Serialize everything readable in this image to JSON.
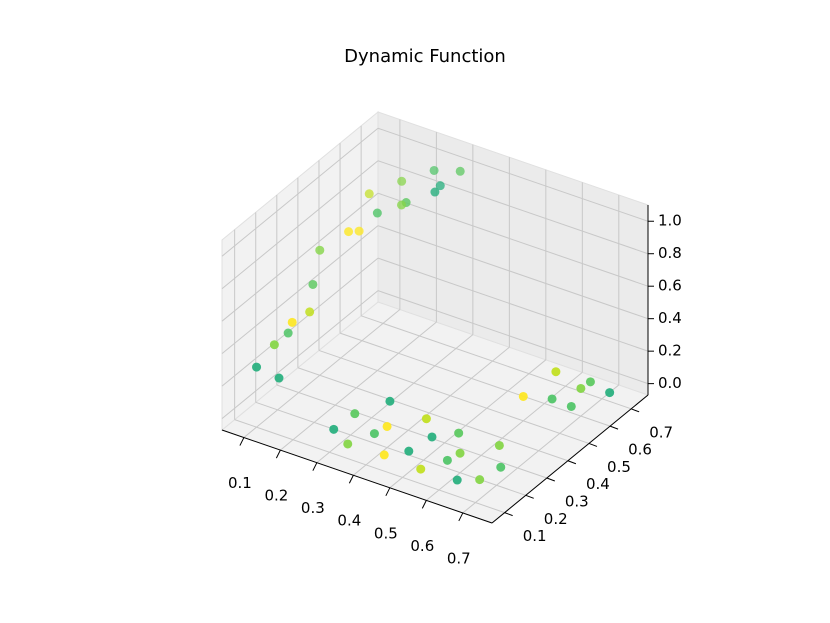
{
  "chart_data": {
    "type": "scatter3d",
    "title": "Dynamic Function",
    "xlim": [
      0.04,
      0.78
    ],
    "ylim": [
      0.04,
      0.78
    ],
    "zlim": [
      -0.07,
      1.1
    ],
    "xticks": [
      0.1,
      0.2,
      0.3,
      0.4,
      0.5,
      0.6,
      0.7
    ],
    "yticks": [
      0.1,
      0.2,
      0.3,
      0.4,
      0.5,
      0.6,
      0.7
    ],
    "zticks": [
      {
        "value": 0,
        "label": "0.0"
      },
      0.2,
      0.4,
      0.6,
      0.8,
      {
        "value": 1,
        "label": "1.0"
      }
    ],
    "grid": true,
    "x": [
      0.3,
      0.35,
      0.4,
      0.45,
      0.5,
      0.55,
      0.6,
      0.65,
      0.7,
      0.3,
      0.4,
      0.5,
      0.6,
      0.7,
      0.35,
      0.45,
      0.55,
      0.65,
      0.6,
      0.65,
      0.7,
      0.75,
      0.62,
      0.68,
      0.72,
      0.1,
      0.12,
      0.14,
      0.1,
      0.13,
      0.11,
      0.15,
      0.1,
      0.15,
      0.2,
      0.25,
      0.3,
      0.12,
      0.18,
      0.24,
      0.3,
      0.15,
      0.22,
      0.28
    ],
    "y": [
      0.12,
      0.1,
      0.14,
      0.1,
      0.13,
      0.1,
      0.14,
      0.1,
      0.12,
      0.22,
      0.2,
      0.24,
      0.2,
      0.22,
      0.3,
      0.3,
      0.28,
      0.3,
      0.5,
      0.55,
      0.6,
      0.65,
      0.62,
      0.68,
      0.52,
      0.1,
      0.15,
      0.2,
      0.25,
      0.3,
      0.35,
      0.12,
      0.4,
      0.45,
      0.5,
      0.55,
      0.6,
      0.6,
      0.65,
      0.7,
      0.72,
      0.5,
      0.58,
      0.66
    ],
    "z": [
      0.05,
      0.02,
      0.08,
      0.03,
      0.06,
      0.02,
      0.07,
      0.03,
      0.05,
      0.04,
      0.06,
      0.03,
      0.05,
      0.02,
      0.07,
      0.04,
      0.05,
      0.03,
      0.08,
      0.05,
      0.1,
      0.06,
      0.12,
      0.04,
      0.09,
      0.3,
      0.4,
      0.5,
      0.35,
      0.45,
      0.55,
      0.25,
      0.7,
      0.8,
      0.9,
      0.95,
      1.0,
      0.85,
      0.92,
      0.98,
      1.0,
      0.75,
      0.88,
      0.96
    ],
    "colors": [
      "#2ab07f",
      "#86d549",
      "#52c569",
      "#fde725",
      "#2ab07f",
      "#c2df23",
      "#52c569",
      "#2ab07f",
      "#86d549",
      "#5ec962",
      "#fde725",
      "#2ab07f",
      "#86d549",
      "#52c569",
      "#2ab07f",
      "#c2df23",
      "#5ec962",
      "#86d549",
      "#fde725",
      "#52c569",
      "#86d549",
      "#2ab07f",
      "#c2df23",
      "#5ec962",
      "#52c569",
      "#2ab07f",
      "#86d549",
      "#fde725",
      "#52c569",
      "#c2df23",
      "#5ec962",
      "#2ab07f",
      "#86d549",
      "#fde725",
      "#52c569",
      "#5ec962",
      "#2ab07f",
      "#c2df23",
      "#86d549",
      "#52c569",
      "#5ec962",
      "#fde725",
      "#86d549",
      "#2ab07f"
    ]
  }
}
